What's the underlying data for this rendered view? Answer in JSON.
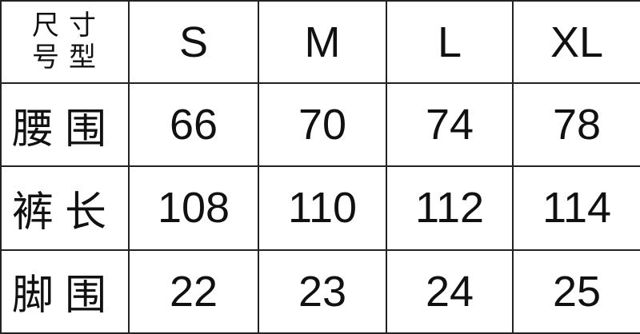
{
  "table": {
    "corner": {
      "top": "尺寸",
      "bottom": "号型"
    },
    "columns": [
      "S",
      "M",
      "L",
      "XL"
    ],
    "rows": [
      {
        "label": "腰围",
        "values": [
          66,
          70,
          74,
          78
        ]
      },
      {
        "label": "裤长",
        "values": [
          108,
          110,
          112,
          114
        ]
      },
      {
        "label": "脚围",
        "values": [
          22,
          23,
          24,
          25
        ]
      }
    ]
  }
}
